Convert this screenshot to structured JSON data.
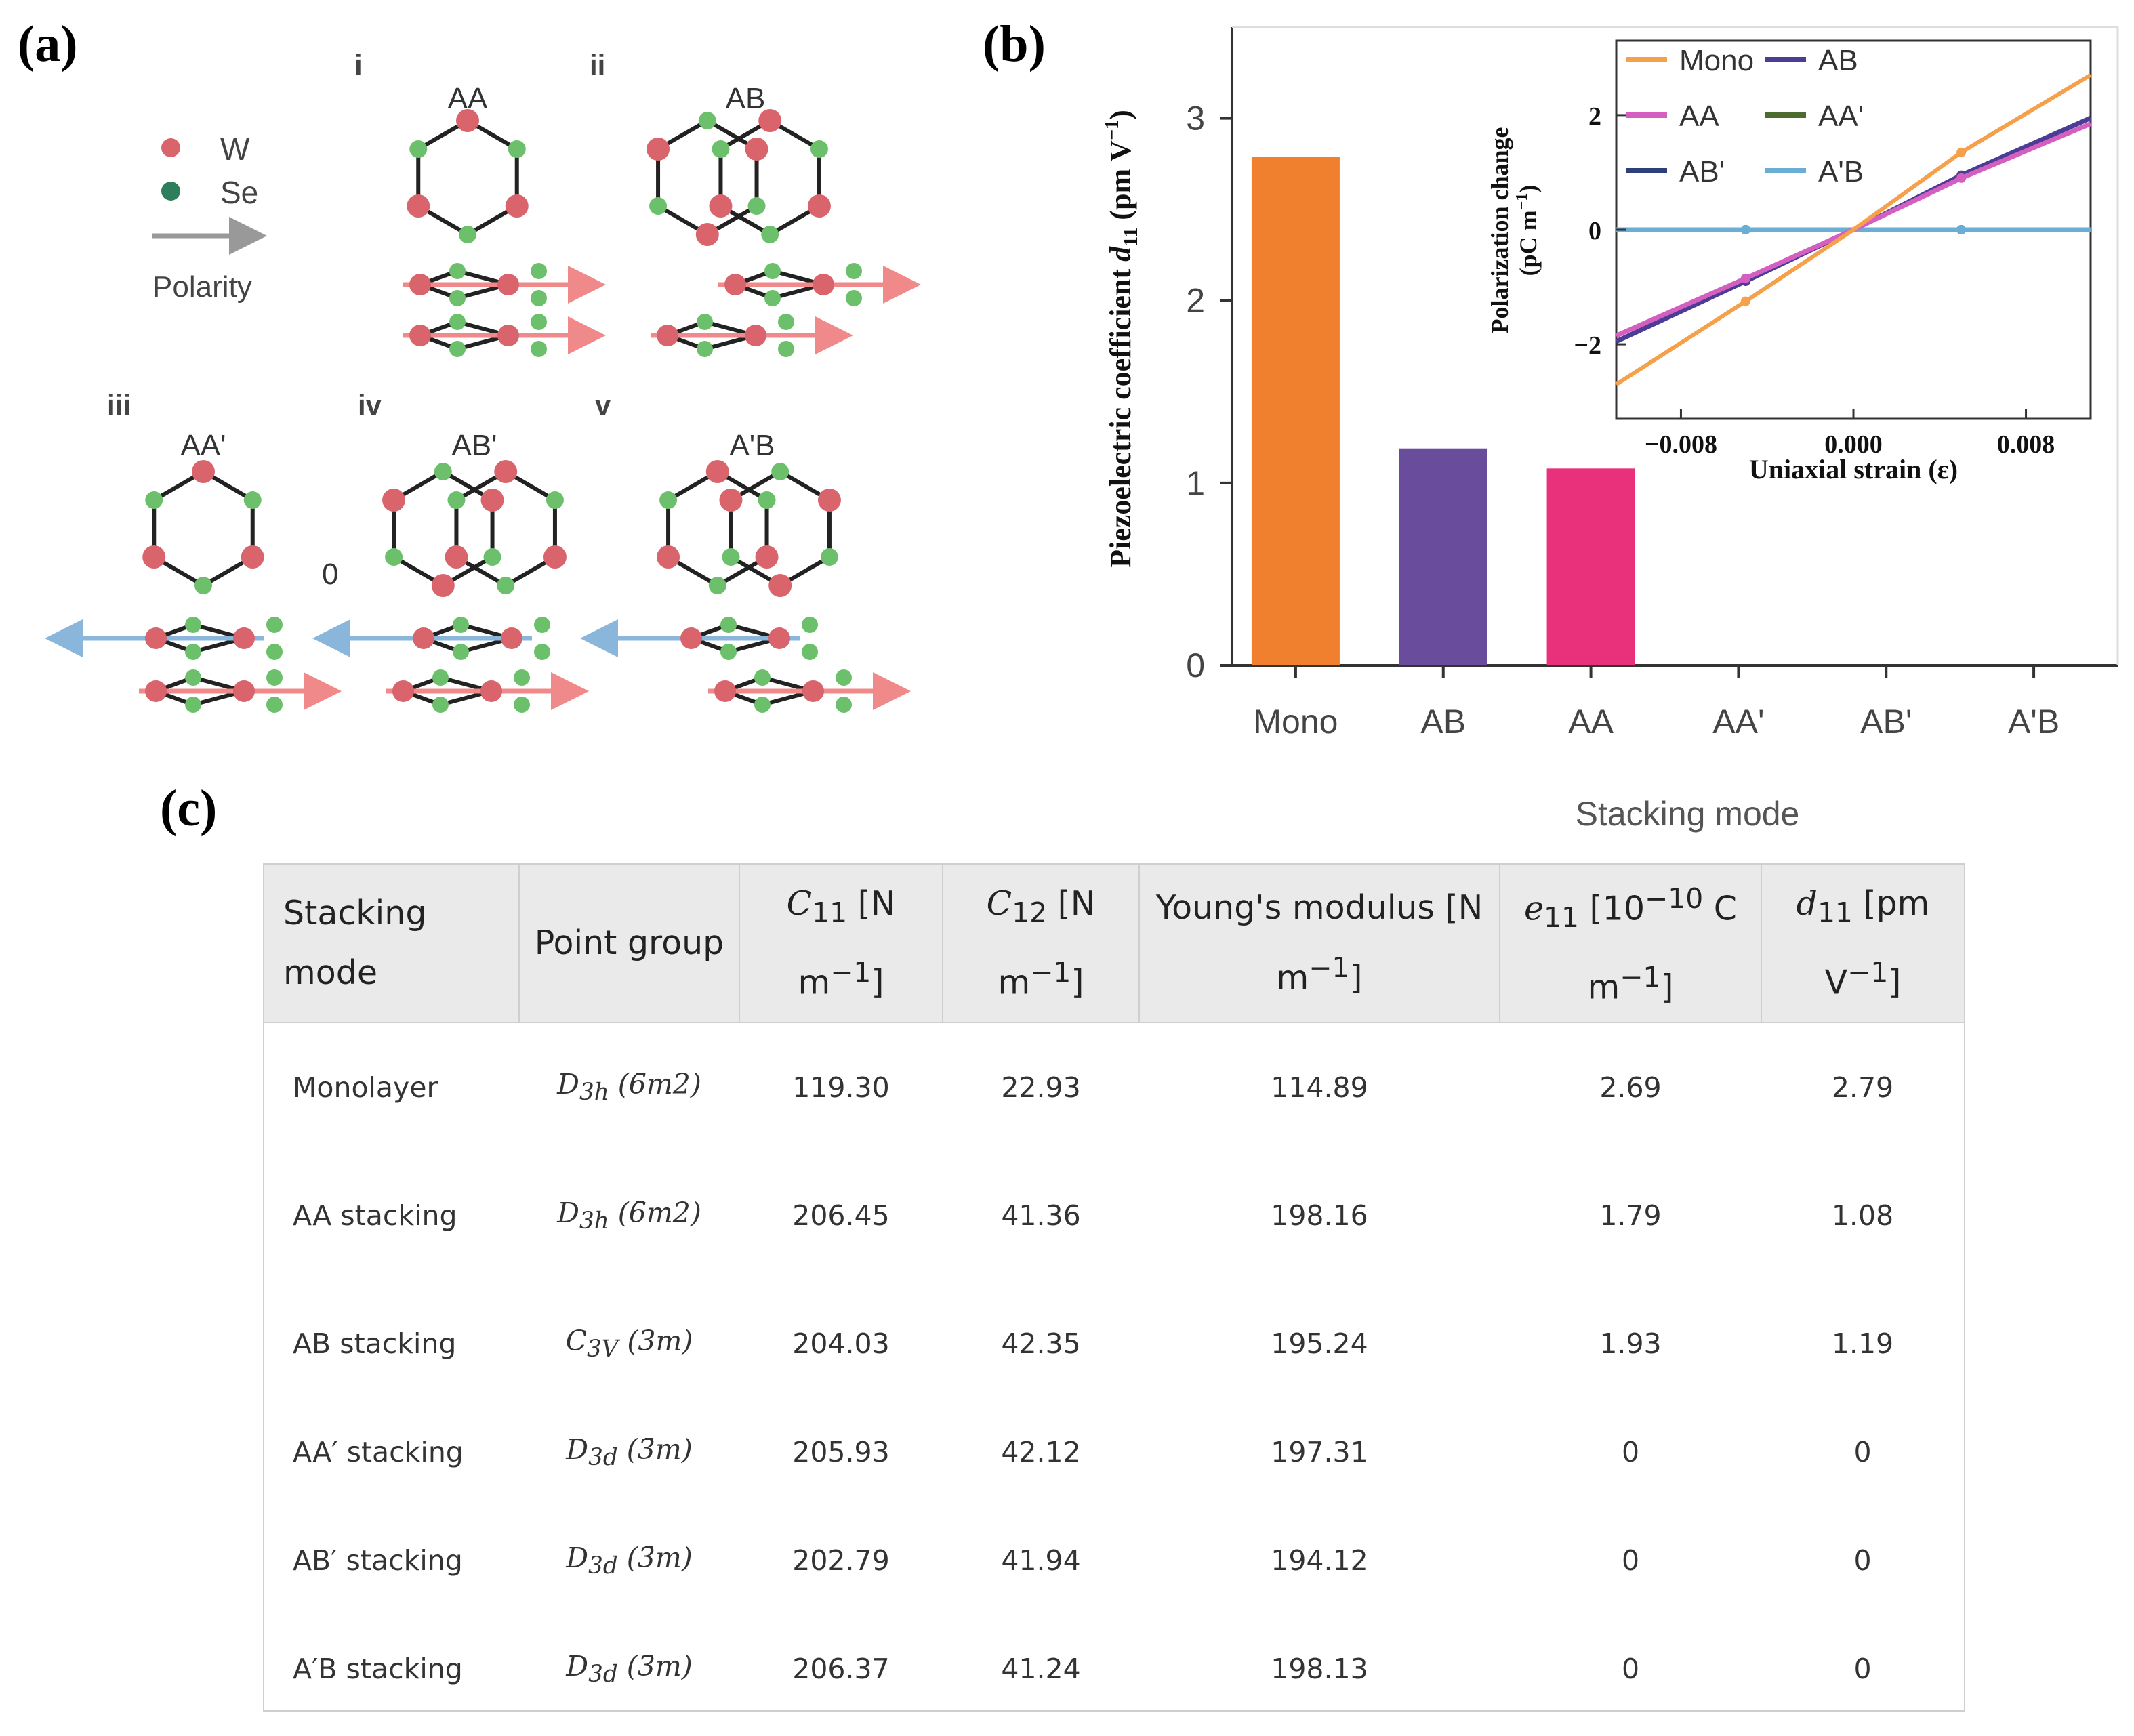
{
  "panel_a": {
    "label": "(a)",
    "legend": {
      "w": "W",
      "se": "Se",
      "polarity": "Polarity"
    },
    "configs": [
      {
        "roman": "i",
        "name": "AA"
      },
      {
        "roman": "ii",
        "name": "AB"
      },
      {
        "roman": "iii",
        "name": "AA'"
      },
      {
        "roman": "iv",
        "name": "AB'"
      },
      {
        "roman": "v",
        "name": "A'B"
      }
    ],
    "zero_label": "0",
    "colors": {
      "w": "#d9646c",
      "se": "#6cc06c",
      "arrow_red": "#f08a8a",
      "arrow_blue": "#8ab6dc",
      "legend_se": "#2e7d5b"
    }
  },
  "panel_b": {
    "label": "(b)"
  },
  "chart_data": [
    {
      "type": "bar",
      "categories": [
        "Mono",
        "AB",
        "AA",
        "AA'",
        "AB'",
        "A'B"
      ],
      "values": [
        2.79,
        1.19,
        1.08,
        0,
        0,
        0
      ],
      "colors": [
        "#f07f2e",
        "#6a4c9c",
        "#e8317a",
        "#999999",
        "#999999",
        "#999999"
      ],
      "ylabel_main": "Piezoelectric coefficient ",
      "ylabel_sym": "d",
      "ylabel_sub": "11",
      "ylabel_unit": " (pm V",
      "ylabel_exp": "−1",
      "ylabel_close": ")",
      "xlabel": "Stacking mode",
      "ylim": [
        0,
        3.5
      ],
      "yticks": [
        "0",
        "1",
        "2",
        "3"
      ],
      "ytick_values": [
        0,
        1,
        2,
        3
      ]
    },
    {
      "type": "line",
      "title": "inset",
      "xlabel": "Uniaxial strain (ε)",
      "ylabel_line1": "Polarization change",
      "ylabel_line2": "(pC m",
      "ylabel_exp": "−1",
      "ylabel_close": ")",
      "xlim": [
        -0.011,
        0.011
      ],
      "ylim": [
        -3.3,
        3.3
      ],
      "xticks": [
        "−0.008",
        "0.000",
        "0.008"
      ],
      "xtick_values": [
        -0.008,
        0,
        0.008
      ],
      "yticks": [
        "−2",
        "0",
        "2"
      ],
      "ytick_values": [
        -2,
        0,
        2
      ],
      "series": [
        {
          "name": "Mono",
          "color": "#f5a04a",
          "x": [
            -0.011,
            -0.005,
            0,
            0.005,
            0.011
          ],
          "y": [
            -2.7,
            -1.25,
            0,
            1.35,
            2.7
          ]
        },
        {
          "name": "AB",
          "color": "#4b3c96",
          "x": [
            -0.011,
            -0.005,
            0,
            0.005,
            0.011
          ],
          "y": [
            -1.95,
            -0.9,
            0,
            0.95,
            1.95
          ]
        },
        {
          "name": "AA",
          "color": "#d45fc0",
          "x": [
            -0.011,
            -0.005,
            0,
            0.005,
            0.011
          ],
          "y": [
            -1.85,
            -0.85,
            0,
            0.9,
            1.85
          ]
        },
        {
          "name": "AA'",
          "color": "#4d6b2e",
          "x": [
            -0.011,
            -0.005,
            0,
            0.005,
            0.011
          ],
          "y": [
            0,
            0,
            0,
            0,
            0
          ]
        },
        {
          "name": "AB'",
          "color": "#2e3f7a",
          "x": [
            -0.011,
            -0.005,
            0,
            0.005,
            0.011
          ],
          "y": [
            0,
            0,
            0,
            0,
            0
          ]
        },
        {
          "name": "A'B",
          "color": "#6aaed6",
          "x": [
            -0.011,
            -0.005,
            0,
            0.005,
            0.011
          ],
          "y": [
            0,
            0,
            0,
            0,
            0
          ]
        }
      ]
    }
  ],
  "panel_c": {
    "label": "(c)",
    "headers": {
      "stacking": "Stacking mode",
      "point_group": "Point group",
      "c11_sym": "C",
      "c11_sub": "11",
      "c11_unit": " [N m",
      "c11_exp": "−1",
      "c11_close": "]",
      "c12_sym": "C",
      "c12_sub": "12",
      "c12_unit": " [N m",
      "c12_exp": "−1",
      "c12_close": "]",
      "young": "Young's modulus [N m",
      "young_exp": "−1",
      "young_close": "]",
      "e11_sym": "e",
      "e11_sub": "11",
      "e11_unit": " [10",
      "e11_exp": "−10",
      "e11_rest": " C m",
      "e11_exp2": "−1",
      "e11_close": "]",
      "d11_sym": "d",
      "d11_sub": "11",
      "d11_unit": " [pm V",
      "d11_exp": "−1",
      "d11_close": "]"
    },
    "rows": [
      {
        "mode": "Monolayer",
        "pg_sym": "D",
        "pg_sub": "3h",
        "pg_group": "(6̄m2)",
        "c11": "119.30",
        "c12": "22.93",
        "young": "114.89",
        "e11": "2.69",
        "d11": "2.79"
      },
      {
        "mode": "AA stacking",
        "pg_sym": "D",
        "pg_sub": "3h",
        "pg_group": "(6̄m2)",
        "c11": "206.45",
        "c12": "41.36",
        "young": "198.16",
        "e11": "1.79",
        "d11": "1.08"
      },
      {
        "mode": "AB stacking",
        "pg_sym": "C",
        "pg_sub": "3V",
        "pg_group": "(3m)",
        "c11": "204.03",
        "c12": "42.35",
        "young": "195.24",
        "e11": "1.93",
        "d11": "1.19"
      },
      {
        "mode": "AA′ stacking",
        "pg_sym": "D",
        "pg_sub": "3d",
        "pg_group": "(3̄m)",
        "c11": "205.93",
        "c12": "42.12",
        "young": "197.31",
        "e11": "0",
        "d11": "0"
      },
      {
        "mode": "AB′ stacking",
        "pg_sym": "D",
        "pg_sub": "3d",
        "pg_group": "(3̄m)",
        "c11": "202.79",
        "c12": "41.94",
        "young": "194.12",
        "e11": "0",
        "d11": "0"
      },
      {
        "mode": "A′B stacking",
        "pg_sym": "D",
        "pg_sub": "3d",
        "pg_group": "(3̄m)",
        "c11": "206.37",
        "c12": "41.24",
        "young": "198.13",
        "e11": "0",
        "d11": "0"
      }
    ]
  }
}
